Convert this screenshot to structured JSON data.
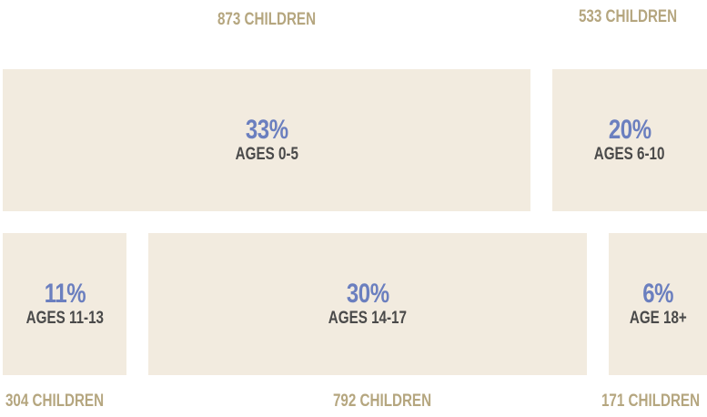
{
  "groups": [
    {
      "percent": "33%",
      "ages": "AGES 0-5",
      "children": "873 CHILDREN"
    },
    {
      "percent": "20%",
      "ages": "AGES 6-10",
      "children": "533 CHILDREN"
    },
    {
      "percent": "11%",
      "ages": "AGES 11-13",
      "children": "304 CHILDREN"
    },
    {
      "percent": "30%",
      "ages": "AGES 14-17",
      "children": "792 CHILDREN"
    },
    {
      "percent": "6%",
      "ages": "AGE 18+",
      "children": "171 CHILDREN"
    }
  ]
}
